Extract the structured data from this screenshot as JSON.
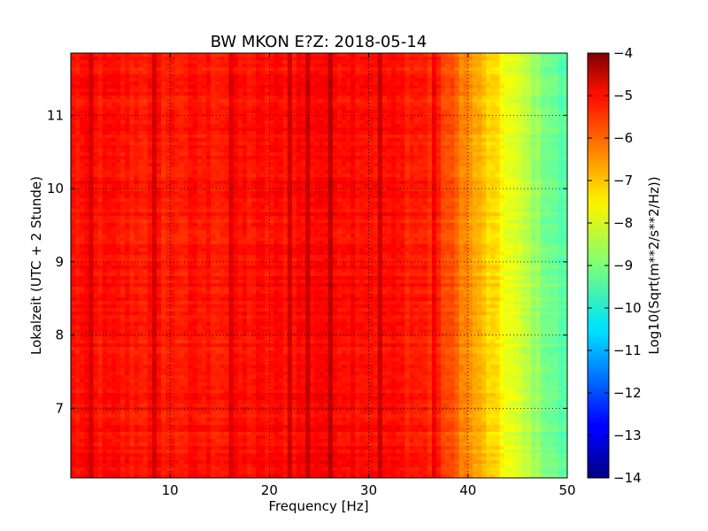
{
  "chart_data": {
    "type": "heatmap",
    "title": "BW MKON E?Z: 2018-05-14",
    "xlabel": "Frequency [Hz]",
    "ylabel": "Lokalzeit (UTC + 2 Stunde)",
    "xlim": [
      0,
      50
    ],
    "ylim": [
      11.85,
      6.05
    ],
    "x_ticks": [
      10,
      20,
      30,
      40,
      50
    ],
    "y_ticks": [
      7,
      8,
      9,
      10,
      11
    ],
    "grid": true,
    "colormap": "jet",
    "colorbar": {
      "label": "Log10(Sqrt(m**2/s**2/Hz))",
      "range": [
        -14,
        -4
      ],
      "ticks": [
        -4,
        -5,
        -6,
        -7,
        -8,
        -9,
        -10,
        -11,
        -12,
        -13,
        -14
      ],
      "tick_labels": [
        "−4",
        "−5",
        "−6",
        "−7",
        "−8",
        "−9",
        "−10",
        "−11",
        "−12",
        "−13",
        "−14"
      ]
    },
    "spectrum_profile": [
      {
        "freq": 0,
        "value": -5.4
      },
      {
        "freq": 5,
        "value": -5.45
      },
      {
        "freq": 10,
        "value": -5.5
      },
      {
        "freq": 20,
        "value": -5.4
      },
      {
        "freq": 25,
        "value": -5.2
      },
      {
        "freq": 30,
        "value": -5.3
      },
      {
        "freq": 35,
        "value": -5.5
      },
      {
        "freq": 37,
        "value": -5.7
      },
      {
        "freq": 39,
        "value": -6.3
      },
      {
        "freq": 41,
        "value": -7.0
      },
      {
        "freq": 43,
        "value": -7.6
      },
      {
        "freq": 45,
        "value": -8.2
      },
      {
        "freq": 47,
        "value": -8.8
      },
      {
        "freq": 49,
        "value": -9.3
      },
      {
        "freq": 50,
        "value": -9.5
      }
    ],
    "dark_bands": [
      {
        "time": 6.87,
        "strength": 1.0,
        "fmax": 40
      },
      {
        "time": 7.0,
        "strength": 0.45,
        "fmax": 40
      },
      {
        "time": 7.15,
        "strength": 0.85,
        "fmax": 50
      },
      {
        "time": 7.87,
        "strength": 1.1,
        "fmax": 50
      },
      {
        "time": 8.2,
        "strength": 0.75,
        "fmax": 40
      },
      {
        "time": 8.27,
        "strength": 0.6,
        "fmax": 40
      },
      {
        "time": 8.62,
        "strength": 0.5,
        "fmax": 40
      },
      {
        "time": 9.55,
        "strength": 0.45,
        "fmax": 40
      },
      {
        "time": 10.05,
        "strength": 1.4,
        "fmax": 42
      },
      {
        "time": 10.22,
        "strength": 0.5,
        "fmax": 40
      }
    ],
    "dark_lines_freq": [
      2.2,
      8.5,
      16,
      22,
      24,
      26,
      31,
      36.5
    ]
  }
}
